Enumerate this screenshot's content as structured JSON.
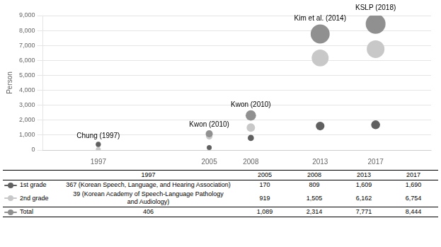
{
  "chart_data": {
    "type": "scatter",
    "ylabel": "Person",
    "x": [
      1997,
      2005,
      2008,
      2013,
      2017
    ],
    "xlim": [
      1993,
      2021
    ],
    "xticks": [
      1997,
      2005,
      2008,
      2013,
      2017
    ],
    "ylim": [
      0,
      9000
    ],
    "yticks": [
      0,
      {
        "value": 1000,
        "label": "1,000"
      },
      {
        "value": 2000,
        "label": "2,000"
      },
      {
        "value": 3000,
        "label": "3,000"
      },
      {
        "value": 4000,
        "label": "4,000"
      },
      {
        "value": 5000,
        "label": "5,000"
      },
      {
        "value": 6000,
        "label": "6,000"
      },
      {
        "value": 7000,
        "label": "7,000"
      },
      {
        "value": 8000,
        "label": "8,000"
      },
      {
        "value": 9000,
        "label": "9,000"
      }
    ],
    "grid": "y",
    "series": [
      {
        "name": "1st grade",
        "color": "#606060",
        "values": [
          367,
          170,
          809,
          1609,
          1690
        ],
        "value_labels": [
          "367 (Korean Speech, Language, and Hearing Association)",
          "170",
          "809",
          "1,609",
          "1,690"
        ]
      },
      {
        "name": "2nd grade",
        "color": "#c8c8c8",
        "values": [
          39,
          919,
          1505,
          6162,
          6754
        ],
        "value_labels": [
          "39 (Korean Academy of Speech-Language Pathology\nand Audiology)",
          "919",
          "1,505",
          "6,162",
          "6,754"
        ]
      },
      {
        "name": "Total",
        "color": "#909090",
        "values": [
          406,
          1089,
          2314,
          7771,
          8444
        ],
        "value_labels": [
          "406",
          "1,089",
          "2,314",
          "7,771",
          "8,444"
        ]
      }
    ],
    "annotations": [
      {
        "text": "Chung (1997)",
        "x": 1997,
        "y": 406
      },
      {
        "text": "Kwon (2010)",
        "x": 2005,
        "y": 1089
      },
      {
        "text": "Kwon (2010)",
        "x": 2008,
        "y": 2314
      },
      {
        "text": "Kim et al. (2014)",
        "x": 2013,
        "y": 7771
      },
      {
        "text": "KSLP (2018)",
        "x": 2017,
        "y": 8444
      }
    ]
  }
}
